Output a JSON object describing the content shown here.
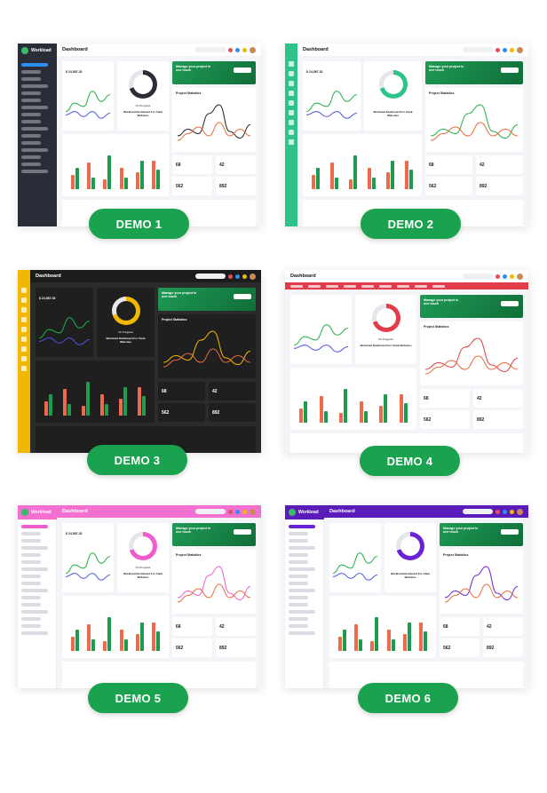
{
  "demos": [
    {
      "label": "DEMO 1",
      "title": "Dashboard",
      "brand": "Workload",
      "profile": "Franklin Jr.",
      "sidebar_color": "#2a2d38",
      "topbar_color": "#ffffff",
      "accent": "#ffffff",
      "dark": false,
      "balance": "$ 24,567.33",
      "progress_label": "On Progress",
      "progress_percent": 70,
      "progress_title": "Workload Dashboard For Clark Websites",
      "banner": "Manage your project in one touch",
      "stats_title": "Project Statistics",
      "stat1": "68",
      "stat2": "42",
      "stat3": "562",
      "stat4": "892",
      "bars_red": [
        30,
        55,
        20,
        45,
        35,
        60
      ],
      "bars_green": [
        45,
        25,
        70,
        25,
        60,
        40
      ]
    },
    {
      "label": "DEMO 2",
      "title": "Dashboard",
      "brand": "",
      "profile": "Franklin Jr.",
      "sidebar_color": "#2fc38a",
      "topbar_color": "#ffffff",
      "accent": "#2fc38a",
      "dark": false,
      "balance": "$ 24,567.33",
      "progress_label": "",
      "progress_percent": 70,
      "progress_title": "Workload Dashboard For Clark Websites",
      "banner": "Manage your project in one touch",
      "stats_title": "Project Statistics",
      "stat1": "68",
      "stat2": "42",
      "stat3": "562",
      "stat4": "892",
      "bars_red": [
        30,
        55,
        20,
        45,
        35,
        60
      ],
      "bars_green": [
        45,
        25,
        70,
        25,
        60,
        40
      ]
    },
    {
      "label": "DEMO 3",
      "title": "Dashboard",
      "brand": "",
      "profile": "",
      "sidebar_color": "#f2b800",
      "topbar_color": "#1c1c1c",
      "accent": "#f2b800",
      "dark": true,
      "balance": "$ 24,567.33",
      "progress_label": "On Progress",
      "progress_percent": 70,
      "progress_title": "Workload Dashboard For Clark Websites",
      "banner": "Manage your project in one touch",
      "stats_title": "Project Statistics",
      "stat1": "68",
      "stat2": "42",
      "stat3": "562",
      "stat4": "892",
      "bars_red": [
        30,
        55,
        20,
        45,
        35,
        60
      ],
      "bars_green": [
        45,
        25,
        70,
        25,
        60,
        40
      ]
    },
    {
      "label": "DEMO 4",
      "title": "Dashboard",
      "brand": "Workload",
      "profile": "Franklin Jr.",
      "sidebar_color": "#e23b4a",
      "topbar_color": "#ffffff",
      "accent": "#e23b4a",
      "dark": false,
      "balance": "",
      "progress_label": "On Progress",
      "progress_percent": 70,
      "progress_title": "Workload Dashboard For Clark Websites",
      "banner": "Manage your project in one touch",
      "stats_title": "Project Statistics",
      "stat1": "68",
      "stat2": "42",
      "stat3": "562",
      "stat4": "892",
      "bars_red": [
        30,
        55,
        20,
        45,
        35,
        60
      ],
      "bars_green": [
        45,
        25,
        70,
        25,
        60,
        40
      ]
    },
    {
      "label": "DEMO 5",
      "title": "Dashboard",
      "brand": "Workload",
      "profile": "",
      "sidebar_color": "#ffffff",
      "topbar_color": "#f36fd0",
      "accent": "#ef5ccc",
      "dark": false,
      "balance": "$ 24,567.33",
      "progress_label": "On Progress",
      "progress_percent": 70,
      "progress_title": "Workload Dashboard For Clark Websites",
      "banner": "Manage your project in one touch",
      "stats_title": "Project Statistics",
      "stat1": "68",
      "stat2": "42",
      "stat3": "562",
      "stat4": "892",
      "bars_red": [
        30,
        55,
        20,
        45,
        35,
        60
      ],
      "bars_green": [
        45,
        25,
        70,
        25,
        60,
        40
      ]
    },
    {
      "label": "DEMO 6",
      "title": "Dashboard",
      "brand": "Workload",
      "profile": "",
      "sidebar_color": "#ffffff",
      "topbar_color": "#5a1bb8",
      "accent": "#6a22d6",
      "dark": false,
      "balance": "",
      "progress_label": "",
      "progress_percent": 70,
      "progress_title": "Workload Dashboard For Clark Websites",
      "banner": "Manage your project in one touch",
      "stats_title": "Project Statistics",
      "stat1": "68",
      "stat2": "42",
      "stat3": "562",
      "stat4": "892",
      "bars_red": [
        30,
        55,
        20,
        45,
        35,
        60
      ],
      "bars_green": [
        45,
        25,
        70,
        25,
        60,
        40
      ]
    }
  ]
}
